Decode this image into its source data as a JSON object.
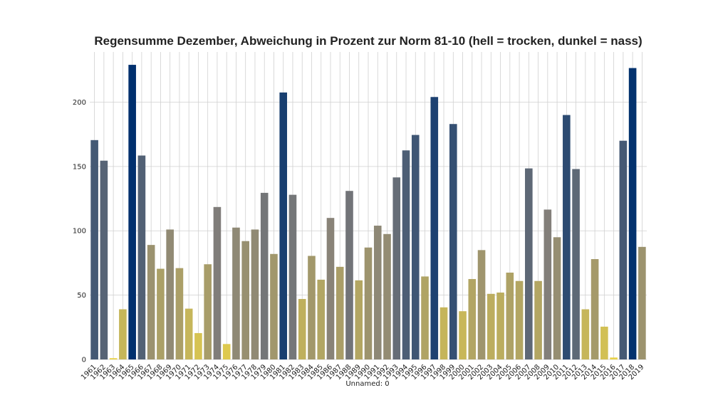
{
  "chart_data": {
    "type": "bar",
    "title": "Regensumme Dezember, Abweichung in Prozent zur Norm 81-10 (hell = trocken, dunkel = nass)",
    "xlabel": "Unnamed: 0",
    "ylabel": "",
    "ylim": [
      0,
      239
    ],
    "yticks": [
      0,
      50,
      100,
      150,
      200
    ],
    "grid": true,
    "categories": [
      "1961",
      "1962",
      "1963",
      "1964",
      "1965",
      "1966",
      "1967",
      "1968",
      "1969",
      "1970",
      "1971",
      "1972",
      "1973",
      "1974",
      "1975",
      "1976",
      "1977",
      "1978",
      "1979",
      "1980",
      "1981",
      "1982",
      "1983",
      "1984",
      "1985",
      "1986",
      "1987",
      "1988",
      "1989",
      "1990",
      "1991",
      "1992",
      "1993",
      "1994",
      "1995",
      "1996",
      "1997",
      "1998",
      "1999",
      "2000",
      "2001",
      "2002",
      "2003",
      "2004",
      "2005",
      "2006",
      "2007",
      "2008",
      "2009",
      "2010",
      "2011",
      "2012",
      "2013",
      "2014",
      "2015",
      "2016",
      "2017",
      "2018",
      "2019"
    ],
    "values": [
      170.5,
      154.5,
      1,
      39,
      229,
      158.5,
      89,
      70.5,
      101,
      71,
      39.5,
      20.5,
      74,
      118.5,
      12,
      102.5,
      92,
      101,
      129.5,
      82,
      207.5,
      128,
      47,
      80.5,
      62,
      110,
      72,
      131,
      61.5,
      87,
      104,
      97.5,
      141.5,
      162.5,
      174.5,
      64.5,
      204,
      40.5,
      183,
      37.5,
      62.5,
      85,
      51,
      52,
      67.5,
      61,
      148.5,
      61,
      116.5,
      95,
      190,
      148,
      39,
      78,
      25.5,
      1.5,
      170,
      226.5,
      87.5
    ],
    "colormap": {
      "low": "#e8d249",
      "mid": "#85807a",
      "high": "#00306e",
      "vmin": 0,
      "vmax": 229
    }
  }
}
